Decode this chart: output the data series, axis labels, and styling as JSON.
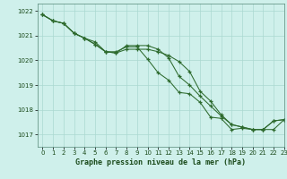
{
  "title": "Graphe pression niveau de la mer (hPa)",
  "xlim": [
    -0.5,
    23
  ],
  "ylim": [
    1016.5,
    1022.3
  ],
  "yticks": [
    1017,
    1018,
    1019,
    1020,
    1021,
    1022
  ],
  "xticks": [
    0,
    1,
    2,
    3,
    4,
    5,
    6,
    7,
    8,
    9,
    10,
    11,
    12,
    13,
    14,
    15,
    16,
    17,
    18,
    19,
    20,
    21,
    22,
    23
  ],
  "background_color": "#cff0eb",
  "grid_color": "#aad8d0",
  "line_color": "#2d6a2d",
  "line1": [
    1021.85,
    1021.6,
    1021.5,
    1021.1,
    1020.9,
    1020.75,
    1020.35,
    1020.35,
    1020.55,
    1020.55,
    1020.05,
    1019.5,
    1019.2,
    1018.7,
    1018.65,
    1018.3,
    1017.7,
    1017.65,
    1017.2,
    1017.25,
    1017.2,
    1017.2,
    1017.55,
    1017.6
  ],
  "line2": [
    1021.85,
    1021.6,
    1021.5,
    1021.1,
    1020.9,
    1020.65,
    1020.35,
    1020.3,
    1020.45,
    1020.45,
    1020.45,
    1020.35,
    1020.2,
    1019.95,
    1019.55,
    1018.75,
    1018.35,
    1017.8,
    1017.4,
    1017.3,
    1017.2,
    1017.2,
    1017.2,
    1017.6
  ],
  "line3": [
    1021.85,
    1021.6,
    1021.5,
    1021.1,
    1020.9,
    1020.65,
    1020.35,
    1020.3,
    1020.6,
    1020.6,
    1020.6,
    1020.45,
    1020.1,
    1019.35,
    1019.0,
    1018.55,
    1018.15,
    1017.75,
    1017.4,
    1017.3,
    1017.2,
    1017.2,
    1017.55,
    1017.6
  ],
  "tick_fontsize": 5.0,
  "label_fontsize": 6.0
}
